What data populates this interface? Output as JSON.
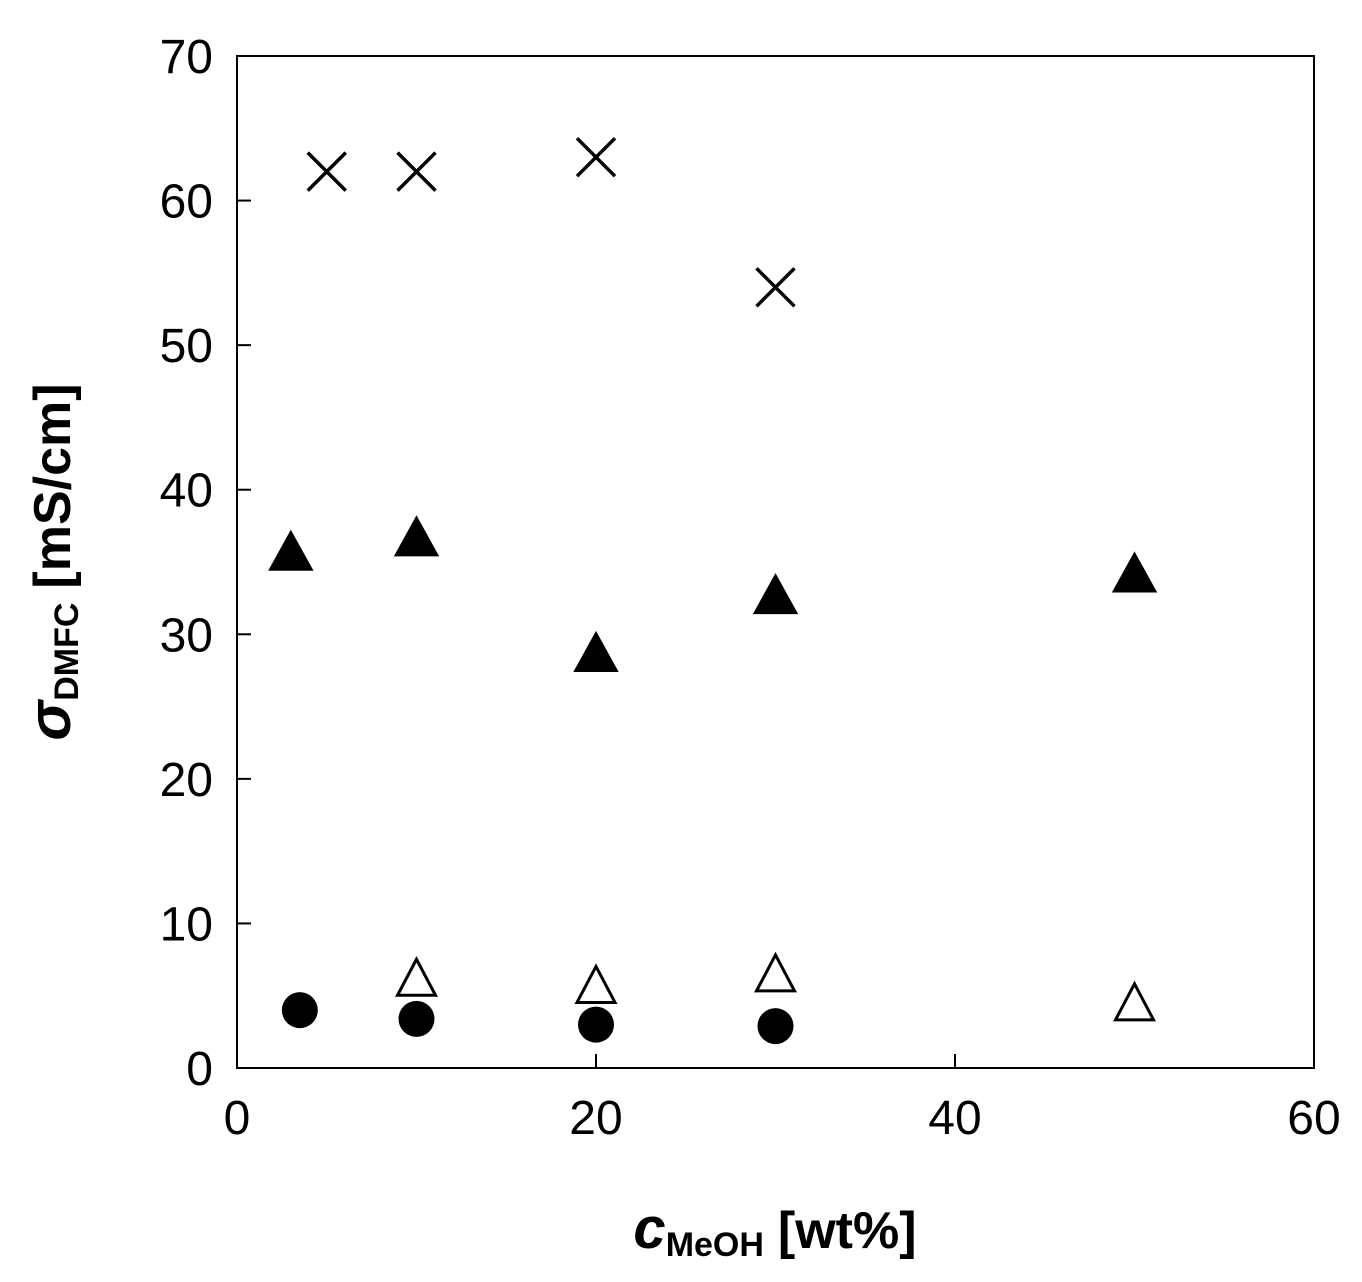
{
  "chart_data": {
    "type": "scatter",
    "title": "",
    "xlabel": {
      "main": "c",
      "subscript": "MeOH",
      "unit": "[wt%]"
    },
    "ylabel": {
      "main": "σ",
      "subscript": "DMFC",
      "unit": "[mS/cm]"
    },
    "xlim": [
      0,
      60
    ],
    "ylim": [
      0,
      70
    ],
    "x_ticks": [
      0,
      20,
      40,
      60
    ],
    "y_ticks": [
      0,
      10,
      20,
      30,
      40,
      50,
      60,
      70
    ],
    "x_tick_labels": [
      "0",
      "20",
      "40",
      "60"
    ],
    "y_tick_labels": [
      "0",
      "10",
      "20",
      "30",
      "40",
      "50",
      "60",
      "70"
    ],
    "grid": false,
    "legend": "none",
    "series": [
      {
        "marker": "cross",
        "points": [
          [
            5,
            62
          ],
          [
            10,
            62
          ],
          [
            20,
            63
          ],
          [
            30,
            54
          ]
        ]
      },
      {
        "marker": "filled-triangle",
        "points": [
          [
            3,
            35.5
          ],
          [
            10,
            36.5
          ],
          [
            20,
            28.5
          ],
          [
            30,
            32.5
          ],
          [
            50,
            34
          ]
        ]
      },
      {
        "marker": "open-triangle",
        "points": [
          [
            10,
            6
          ],
          [
            20,
            5.5
          ],
          [
            30,
            6.3
          ],
          [
            50,
            4.3
          ]
        ]
      },
      {
        "marker": "filled-circle",
        "points": [
          [
            3.5,
            4
          ],
          [
            10,
            3.4
          ],
          [
            20,
            3
          ],
          [
            30,
            2.9
          ]
        ]
      }
    ]
  }
}
